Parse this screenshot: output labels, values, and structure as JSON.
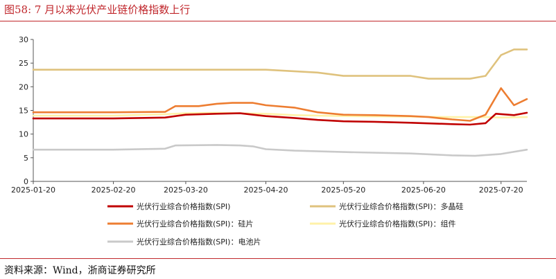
{
  "header": {
    "title": "图58:  7 月以来光伏产业链价格指数上行"
  },
  "footer": {
    "source": "资料来源：Wind，浙商证券研究所"
  },
  "chart_data": {
    "type": "line",
    "title": "7 月以来光伏产业链价格指数上行",
    "xlabel": "",
    "ylabel": "",
    "ylim": [
      0,
      30
    ],
    "yticks": [
      0,
      5,
      10,
      15,
      20,
      25,
      30
    ],
    "x_ticks": [
      "2025-01-20",
      "2025-02-20",
      "2025-03-20",
      "2025-04-20",
      "2025-05-20",
      "2025-06-20",
      "2025-07-20"
    ],
    "x_range": [
      "2025-01-20",
      "2025-07-30"
    ],
    "grid": false,
    "legend_position": "bottom",
    "series": [
      {
        "name": "光伏行业综合价格指数(SPI)",
        "color": "#c00000",
        "points": [
          [
            "2025-01-20",
            13.3
          ],
          [
            "2025-02-20",
            13.3
          ],
          [
            "2025-03-12",
            13.5
          ],
          [
            "2025-03-20",
            14.1
          ],
          [
            "2025-04-01",
            14.3
          ],
          [
            "2025-04-10",
            14.4
          ],
          [
            "2025-04-20",
            13.8
          ],
          [
            "2025-05-01",
            13.4
          ],
          [
            "2025-05-10",
            13.0
          ],
          [
            "2025-05-20",
            12.7
          ],
          [
            "2025-06-01",
            12.6
          ],
          [
            "2025-06-15",
            12.4
          ],
          [
            "2025-07-01",
            12.1
          ],
          [
            "2025-07-08",
            12.0
          ],
          [
            "2025-07-14",
            12.3
          ],
          [
            "2025-07-18",
            14.3
          ],
          [
            "2025-07-25",
            14.0
          ],
          [
            "2025-07-30",
            14.5
          ]
        ]
      },
      {
        "name": "光伏行业综合价格指数(SPI)：多晶硅",
        "color": "#dfc27d",
        "points": [
          [
            "2025-01-20",
            23.6
          ],
          [
            "2025-02-20",
            23.6
          ],
          [
            "2025-03-20",
            23.6
          ],
          [
            "2025-04-20",
            23.6
          ],
          [
            "2025-05-10",
            23.0
          ],
          [
            "2025-05-20",
            22.3
          ],
          [
            "2025-06-15",
            22.3
          ],
          [
            "2025-06-22",
            21.7
          ],
          [
            "2025-07-08",
            21.7
          ],
          [
            "2025-07-14",
            22.3
          ],
          [
            "2025-07-20",
            26.7
          ],
          [
            "2025-07-25",
            27.9
          ],
          [
            "2025-07-30",
            27.9
          ]
        ]
      },
      {
        "name": "光伏行业综合价格指数(SPI)：硅片",
        "color": "#ed7d31",
        "points": [
          [
            "2025-01-20",
            14.6
          ],
          [
            "2025-02-20",
            14.6
          ],
          [
            "2025-03-12",
            14.7
          ],
          [
            "2025-03-16",
            15.9
          ],
          [
            "2025-03-25",
            15.9
          ],
          [
            "2025-04-01",
            16.4
          ],
          [
            "2025-04-07",
            16.6
          ],
          [
            "2025-04-15",
            16.6
          ],
          [
            "2025-04-20",
            16.1
          ],
          [
            "2025-05-01",
            15.6
          ],
          [
            "2025-05-10",
            14.6
          ],
          [
            "2025-05-20",
            14.1
          ],
          [
            "2025-06-01",
            14.0
          ],
          [
            "2025-06-15",
            13.8
          ],
          [
            "2025-06-22",
            13.6
          ],
          [
            "2025-07-01",
            13.1
          ],
          [
            "2025-07-08",
            12.8
          ],
          [
            "2025-07-14",
            14.1
          ],
          [
            "2025-07-20",
            19.7
          ],
          [
            "2025-07-25",
            16.1
          ],
          [
            "2025-07-30",
            17.4
          ]
        ]
      },
      {
        "name": "光伏行业综合价格指数(SPI)：组件",
        "color": "#fff2a8",
        "points": [
          [
            "2025-01-20",
            13.9
          ],
          [
            "2025-02-20",
            13.9
          ],
          [
            "2025-03-12",
            14.2
          ],
          [
            "2025-03-20",
            14.4
          ],
          [
            "2025-04-01",
            14.5
          ],
          [
            "2025-04-20",
            14.3
          ],
          [
            "2025-05-01",
            14.0
          ],
          [
            "2025-05-20",
            13.8
          ],
          [
            "2025-06-15",
            13.7
          ],
          [
            "2025-07-01",
            13.6
          ],
          [
            "2025-07-14",
            13.6
          ],
          [
            "2025-07-20",
            13.5
          ],
          [
            "2025-07-30",
            13.6
          ]
        ]
      },
      {
        "name": "光伏行业综合价格指数(SPI)：电池片",
        "color": "#c9c9c9",
        "points": [
          [
            "2025-01-20",
            6.7
          ],
          [
            "2025-02-20",
            6.7
          ],
          [
            "2025-03-12",
            6.9
          ],
          [
            "2025-03-16",
            7.6
          ],
          [
            "2025-04-01",
            7.7
          ],
          [
            "2025-04-10",
            7.6
          ],
          [
            "2025-04-15",
            7.4
          ],
          [
            "2025-04-20",
            6.8
          ],
          [
            "2025-05-01",
            6.5
          ],
          [
            "2025-05-20",
            6.2
          ],
          [
            "2025-06-15",
            5.9
          ],
          [
            "2025-07-01",
            5.5
          ],
          [
            "2025-07-10",
            5.4
          ],
          [
            "2025-07-20",
            5.8
          ],
          [
            "2025-07-30",
            6.7
          ]
        ]
      }
    ]
  }
}
